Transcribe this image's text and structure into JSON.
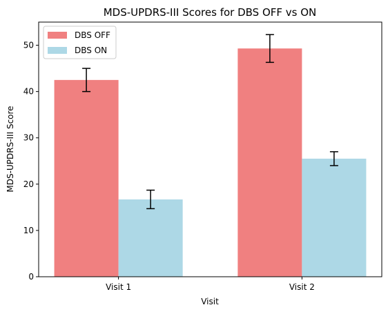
{
  "chart_data": {
    "type": "bar",
    "title": "MDS-UPDRS-III Scores for DBS OFF vs ON",
    "xlabel": "Visit",
    "ylabel": "MDS-UPDRS-III Score",
    "categories": [
      "Visit 1",
      "Visit 2"
    ],
    "series": [
      {
        "name": "DBS OFF",
        "values": [
          42.5,
          49.3
        ],
        "errors": [
          2.5,
          3.0
        ],
        "color": "#f08080"
      },
      {
        "name": "DBS ON",
        "values": [
          16.7,
          25.5
        ],
        "errors": [
          2.0,
          1.5
        ],
        "color": "#add8e6"
      }
    ],
    "ylim": [
      0,
      55
    ],
    "yticks": [
      0,
      10,
      20,
      30,
      40,
      50
    ],
    "grid": false,
    "legend_position": "top-left"
  }
}
